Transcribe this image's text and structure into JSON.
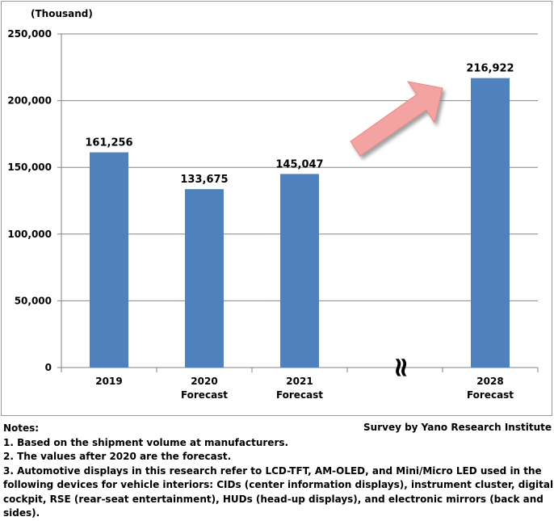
{
  "chart_data": {
    "type": "bar",
    "unit_label": "(Thousand)",
    "categories": [
      {
        "line1": "2019",
        "line2": ""
      },
      {
        "line1": "2020",
        "line2": "Forecast"
      },
      {
        "line1": "2021",
        "line2": "Forecast"
      },
      {
        "line1": "",
        "line2": ""
      },
      {
        "line1": "2028",
        "line2": "Forecast"
      }
    ],
    "values": [
      161256,
      133675,
      145047,
      null,
      216922
    ],
    "data_labels": [
      "161,256",
      "133,675",
      "145,047",
      "",
      "216,922"
    ],
    "ylim": [
      0,
      250000
    ],
    "yticks": [
      0,
      50000,
      100000,
      150000,
      200000,
      250000
    ],
    "ytick_labels": [
      "0",
      "50,000",
      "100,000",
      "150,000",
      "200,000",
      "250,000"
    ],
    "grid": true,
    "axis_break_symbol": "≈",
    "annotation": "upward arrow pointing to 2028",
    "colors": {
      "bar": "#4f81bd",
      "arrow_fill": "#f4a3a3",
      "grid": "#868686"
    }
  },
  "notes": {
    "title": "Notes:",
    "lines": [
      "1.  Based on the shipment volume at manufacturers.",
      "2. The values after 2020 are the forecast.",
      "3. Automotive displays in this research refer to LCD-TFT, AM-OLED, and Mini/Micro LED used in the",
      "following devices for vehicle interiors: CIDs (center information displays), instrument cluster, digital",
      "cockpit, RSE (rear-seat entertainment), HUDs (head-up displays), and electronic mirrors (back and",
      "sides)."
    ]
  },
  "credit": "Survey by Yano Research Institute"
}
